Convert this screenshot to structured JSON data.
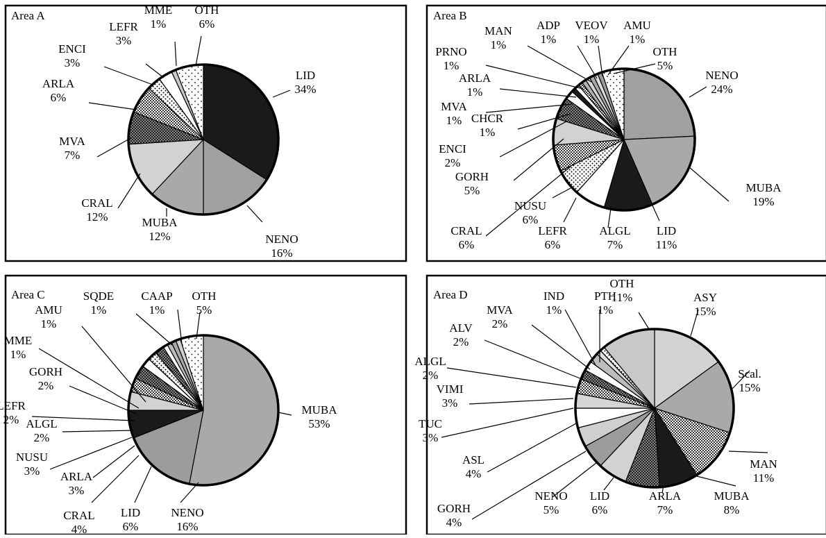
{
  "chart_data": [
    {
      "type": "pie",
      "title": "Area A",
      "start": "12 o'clock, clockwise",
      "slices": [
        {
          "label": "LID",
          "value": 34,
          "text": "34%",
          "fill": "#1a1a1a"
        },
        {
          "label": "NENO",
          "value": 16,
          "text": "16%",
          "fill": "#a0a0a0"
        },
        {
          "label": "MUBA",
          "value": 12,
          "text": "12%",
          "fill": "#a9a9a9"
        },
        {
          "label": "CRAL",
          "value": 12,
          "text": "12%",
          "fill": "#d2d2d2"
        },
        {
          "label": "MVA",
          "value": 7,
          "text": "7%",
          "fill": "url(#pat-dense)"
        },
        {
          "label": "ARLA",
          "value": 6,
          "text": "6%",
          "fill": "url(#pat-check)"
        },
        {
          "label": "ENCI",
          "value": 3,
          "text": "3%",
          "fill": "url(#pat-dots)"
        },
        {
          "label": "LEFR",
          "value": 3,
          "text": "3%",
          "fill": "#ffffff"
        },
        {
          "label": "MME",
          "value": 1,
          "text": "1%",
          "fill": "#c8c8c8"
        },
        {
          "label": "OTH",
          "value": 6,
          "text": "6%",
          "fill": "url(#pat-sparse)"
        }
      ]
    },
    {
      "type": "pie",
      "title": "Area B",
      "start": "12 o'clock, clockwise",
      "slices": [
        {
          "label": "NENO",
          "value": 24,
          "text": "24%",
          "fill": "#a0a0a0"
        },
        {
          "label": "MUBA",
          "value": 19,
          "text": "19%",
          "fill": "#a9a9a9"
        },
        {
          "label": "LID",
          "value": 11,
          "text": "11%",
          "fill": "#1a1a1a"
        },
        {
          "label": "ALGL",
          "value": 7,
          "text": "7%",
          "fill": "#ffffff"
        },
        {
          "label": "LEFR",
          "value": 6,
          "text": "6%",
          "fill": "url(#pat-dots)"
        },
        {
          "label": "NUSU",
          "value": 6,
          "text": "6%",
          "fill": "url(#pat-check)"
        },
        {
          "label": "CRAL",
          "value": 6,
          "text": "6%",
          "fill": "#d2d2d2"
        },
        {
          "label": "GORH",
          "value": 5,
          "text": "5%",
          "fill": "url(#pat-dense)"
        },
        {
          "label": "ENCI",
          "value": 2,
          "text": "2%",
          "fill": "#ffffff"
        },
        {
          "label": "CHCR",
          "value": 1,
          "text": "1%",
          "fill": "#1a1a1a"
        },
        {
          "label": "MVA",
          "value": 1,
          "text": "1%",
          "fill": "#ffffff"
        },
        {
          "label": "ARLA",
          "value": 1,
          "text": "1%",
          "fill": "url(#pat-check)"
        },
        {
          "label": "PRNO",
          "value": 1,
          "text": "1%",
          "fill": "#b0b0b0"
        },
        {
          "label": "MAN",
          "value": 1,
          "text": "1%",
          "fill": "#d6d6d6"
        },
        {
          "label": "ADP",
          "value": 1,
          "text": "1%",
          "fill": "#a8a8a8"
        },
        {
          "label": "VEOV",
          "value": 1,
          "text": "1%",
          "fill": "#dcdcdc"
        },
        {
          "label": "AMU",
          "value": 1,
          "text": "1%",
          "fill": "#9c9c9c"
        },
        {
          "label": "OTH",
          "value": 5,
          "text": "5%",
          "fill": "url(#pat-sparse)"
        }
      ]
    },
    {
      "type": "pie",
      "title": "Area C",
      "start": "12 o'clock, clockwise",
      "slices": [
        {
          "label": "MUBA",
          "value": 53,
          "text": "53%",
          "fill": "#a9a9a9"
        },
        {
          "label": "NENO",
          "value": 16,
          "text": "16%",
          "fill": "#9c9c9c"
        },
        {
          "label": "LID",
          "value": 6,
          "text": "6%",
          "fill": "#1a1a1a"
        },
        {
          "label": "CRAL",
          "value": 4,
          "text": "4%",
          "fill": "#d2d2d2"
        },
        {
          "label": "ARLA",
          "value": 3,
          "text": "3%",
          "fill": "url(#pat-check)"
        },
        {
          "label": "NUSU",
          "value": 3,
          "text": "3%",
          "fill": "url(#pat-dense)"
        },
        {
          "label": "ALGL",
          "value": 2,
          "text": "2%",
          "fill": "#ffffff"
        },
        {
          "label": "LEFR",
          "value": 2,
          "text": "2%",
          "fill": "url(#pat-dots)"
        },
        {
          "label": "GORH",
          "value": 2,
          "text": "2%",
          "fill": "url(#pat-dense)"
        },
        {
          "label": "MME",
          "value": 1,
          "text": "1%",
          "fill": "#ffffff"
        },
        {
          "label": "AMU",
          "value": 1,
          "text": "1%",
          "fill": "#bbbbbb"
        },
        {
          "label": "SQDE",
          "value": 1,
          "text": "1%",
          "fill": "#a8a8a8"
        },
        {
          "label": "CAAP",
          "value": 1,
          "text": "1%",
          "fill": "#d0d0d0"
        },
        {
          "label": "OTH",
          "value": 5,
          "text": "5%",
          "fill": "url(#pat-sparse)"
        }
      ]
    },
    {
      "type": "pie",
      "title": "Area D",
      "start": "12 o'clock, clockwise",
      "slices": [
        {
          "label": "ASY",
          "value": 15,
          "text": "15%",
          "fill": "#d2d2d2"
        },
        {
          "label": "Scal.",
          "value": 15,
          "text": "15%",
          "fill": "#a9a9a9"
        },
        {
          "label": "MAN",
          "value": 11,
          "text": "11%",
          "fill": "url(#pat-check)"
        },
        {
          "label": "MUBA",
          "value": 8,
          "text": "8%",
          "fill": "#1a1a1a"
        },
        {
          "label": "ARLA",
          "value": 7,
          "text": "7%",
          "fill": "url(#pat-dense)"
        },
        {
          "label": "LID",
          "value": 6,
          "text": "6%",
          "fill": "#d2d2d2"
        },
        {
          "label": "NENO",
          "value": 5,
          "text": "5%",
          "fill": "#9c9c9c"
        },
        {
          "label": "GORH",
          "value": 4,
          "text": "4%",
          "fill": "#cfcfcf"
        },
        {
          "label": "ASL",
          "value": 4,
          "text": "4%",
          "fill": "#ffffff"
        },
        {
          "label": "TUC",
          "value": 3,
          "text": "3%",
          "fill": "#d6d6d6"
        },
        {
          "label": "VIMI",
          "value": 3,
          "text": "3%",
          "fill": "url(#pat-check)"
        },
        {
          "label": "ALGL",
          "value": 2,
          "text": "2%",
          "fill": "url(#pat-dense)"
        },
        {
          "label": "ALV",
          "value": 2,
          "text": "2%",
          "fill": "#ffffff"
        },
        {
          "label": "MVA",
          "value": 2,
          "text": "2%",
          "fill": "#bdbdbd"
        },
        {
          "label": "IND",
          "value": 1,
          "text": "1%",
          "fill": "#e0e0e0"
        },
        {
          "label": "PTH",
          "value": 1,
          "text": "1%",
          "fill": "url(#pat-dots)"
        },
        {
          "label": "OTH",
          "value": 11,
          "text": "11%",
          "fill": "#c8c8c8"
        }
      ]
    }
  ]
}
